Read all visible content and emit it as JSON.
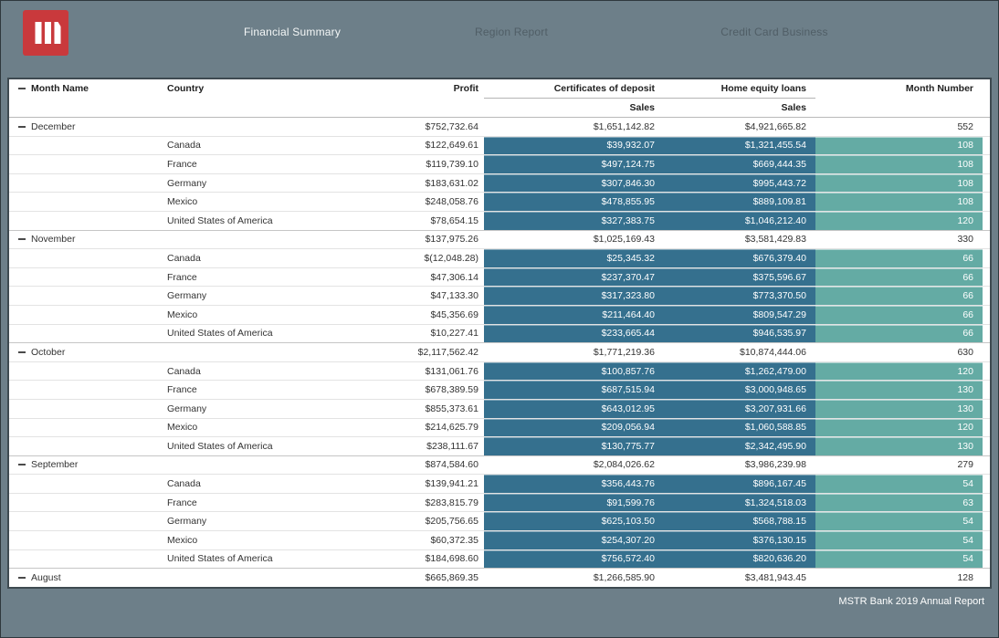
{
  "header": {
    "tabs": [
      {
        "label": "Financial Summary",
        "active": true
      },
      {
        "label": "Region Report",
        "active": false
      },
      {
        "label": "Credit Card Business",
        "active": false
      }
    ]
  },
  "colors": {
    "topbar_bg": "#6d7f89",
    "logo_red": "#c9393c",
    "cd_hel_cell_teal": "#35708e",
    "month_number_cell_teal": "#64aba4"
  },
  "table": {
    "col_headers": {
      "month": "Month Name",
      "country": "Country",
      "profit": "Profit",
      "certificates_of_deposit": "Certificates of deposit",
      "home_equity_loans": "Home equity loans",
      "month_number": "Month Number",
      "cd_subheader": "Sales",
      "hel_subheader": "Sales"
    },
    "rows": [
      {
        "type": "month",
        "month": "December",
        "country": "",
        "profit": "$752,732.64",
        "cd": "$1,651,142.82",
        "hel": "$4,921,665.82",
        "mn": "552"
      },
      {
        "type": "country",
        "month": "",
        "country": "Canada",
        "profit": "$122,649.61",
        "cd": "$39,932.07",
        "hel": "$1,321,455.54",
        "mn": "108"
      },
      {
        "type": "country",
        "month": "",
        "country": "France",
        "profit": "$119,739.10",
        "cd": "$497,124.75",
        "hel": "$669,444.35",
        "mn": "108"
      },
      {
        "type": "country",
        "month": "",
        "country": "Germany",
        "profit": "$183,631.02",
        "cd": "$307,846.30",
        "hel": "$995,443.72",
        "mn": "108"
      },
      {
        "type": "country",
        "month": "",
        "country": "Mexico",
        "profit": "$248,058.76",
        "cd": "$478,855.95",
        "hel": "$889,109.81",
        "mn": "108"
      },
      {
        "type": "country",
        "month": "",
        "country": "United States of America",
        "profit": "$78,654.15",
        "cd": "$327,383.75",
        "hel": "$1,046,212.40",
        "mn": "120"
      },
      {
        "type": "month",
        "month": "November",
        "country": "",
        "profit": "$137,975.26",
        "cd": "$1,025,169.43",
        "hel": "$3,581,429.83",
        "mn": "330"
      },
      {
        "type": "country",
        "month": "",
        "country": "Canada",
        "profit": "$(12,048.28)",
        "cd": "$25,345.32",
        "hel": "$676,379.40",
        "mn": "66"
      },
      {
        "type": "country",
        "month": "",
        "country": "France",
        "profit": "$47,306.14",
        "cd": "$237,370.47",
        "hel": "$375,596.67",
        "mn": "66"
      },
      {
        "type": "country",
        "month": "",
        "country": "Germany",
        "profit": "$47,133.30",
        "cd": "$317,323.80",
        "hel": "$773,370.50",
        "mn": "66"
      },
      {
        "type": "country",
        "month": "",
        "country": "Mexico",
        "profit": "$45,356.69",
        "cd": "$211,464.40",
        "hel": "$809,547.29",
        "mn": "66"
      },
      {
        "type": "country",
        "month": "",
        "country": "United States of America",
        "profit": "$10,227.41",
        "cd": "$233,665.44",
        "hel": "$946,535.97",
        "mn": "66"
      },
      {
        "type": "month",
        "month": "October",
        "country": "",
        "profit": "$2,117,562.42",
        "cd": "$1,771,219.36",
        "hel": "$10,874,444.06",
        "mn": "630"
      },
      {
        "type": "country",
        "month": "",
        "country": "Canada",
        "profit": "$131,061.76",
        "cd": "$100,857.76",
        "hel": "$1,262,479.00",
        "mn": "120"
      },
      {
        "type": "country",
        "month": "",
        "country": "France",
        "profit": "$678,389.59",
        "cd": "$687,515.94",
        "hel": "$3,000,948.65",
        "mn": "130"
      },
      {
        "type": "country",
        "month": "",
        "country": "Germany",
        "profit": "$855,373.61",
        "cd": "$643,012.95",
        "hel": "$3,207,931.66",
        "mn": "130"
      },
      {
        "type": "country",
        "month": "",
        "country": "Mexico",
        "profit": "$214,625.79",
        "cd": "$209,056.94",
        "hel": "$1,060,588.85",
        "mn": "120"
      },
      {
        "type": "country",
        "month": "",
        "country": "United States of America",
        "profit": "$238,111.67",
        "cd": "$130,775.77",
        "hel": "$2,342,495.90",
        "mn": "130"
      },
      {
        "type": "month",
        "month": "September",
        "country": "",
        "profit": "$874,584.60",
        "cd": "$2,084,026.62",
        "hel": "$3,986,239.98",
        "mn": "279"
      },
      {
        "type": "country",
        "month": "",
        "country": "Canada",
        "profit": "$139,941.21",
        "cd": "$356,443.76",
        "hel": "$896,167.45",
        "mn": "54"
      },
      {
        "type": "country",
        "month": "",
        "country": "France",
        "profit": "$283,815.79",
        "cd": "$91,599.76",
        "hel": "$1,324,518.03",
        "mn": "63"
      },
      {
        "type": "country",
        "month": "",
        "country": "Germany",
        "profit": "$205,756.65",
        "cd": "$625,103.50",
        "hel": "$568,788.15",
        "mn": "54"
      },
      {
        "type": "country",
        "month": "",
        "country": "Mexico",
        "profit": "$60,372.35",
        "cd": "$254,307.20",
        "hel": "$376,130.15",
        "mn": "54"
      },
      {
        "type": "country",
        "month": "",
        "country": "United States of America",
        "profit": "$184,698.60",
        "cd": "$756,572.40",
        "hel": "$820,636.20",
        "mn": "54"
      },
      {
        "type": "month",
        "month": "August",
        "country": "",
        "profit": "$665,869.35",
        "cd": "$1,266,585.90",
        "hel": "$3,481,943.45",
        "mn": "128"
      }
    ]
  },
  "footer": {
    "note": "MSTR Bank 2019 Annual Report"
  }
}
